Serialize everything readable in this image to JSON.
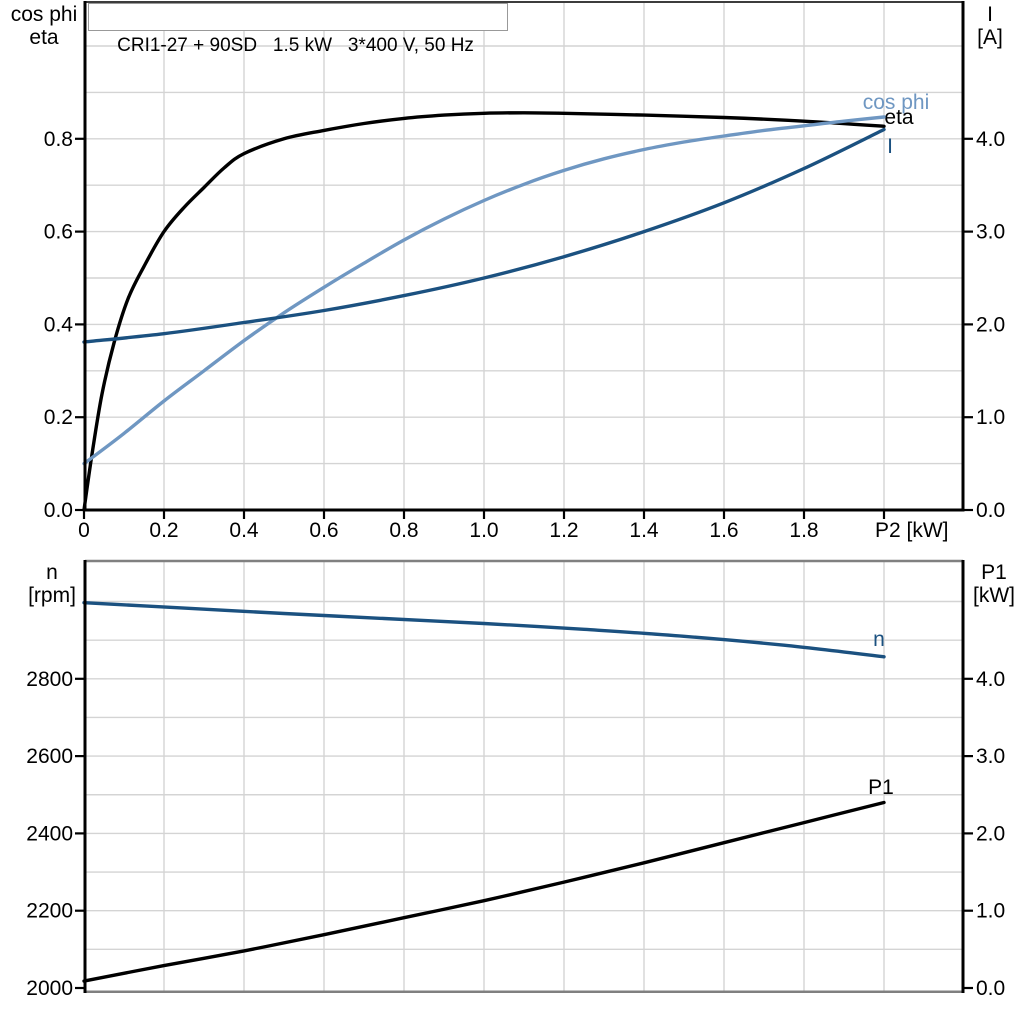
{
  "colors": {
    "background": "#ffffff",
    "grid": "#d4d4d4",
    "axis": "#000000",
    "frame_gray": "#808080",
    "top_border": "#3c3c3c",
    "title_border": "#999999",
    "eta": "#000000",
    "cos_phi": "#6f97c2",
    "current": "#1b5180",
    "speed": "#1b5180",
    "p1": "#000000"
  },
  "chart_data": [
    {
      "type": "line",
      "title": "CRI1-27 + 90SD   1.5 kW   3*400 V, 50 Hz",
      "xlabel": "P2 [kW]",
      "xlim": [
        0,
        2.2
      ],
      "grid": "on",
      "legend_position": "end-of-curve",
      "left_axis": {
        "label_line1": "cos phi",
        "label_line2": "eta",
        "ylim": [
          0,
          1.09
        ],
        "ticks": [
          {
            "v": 0.0,
            "label": "0.0"
          },
          {
            "v": 0.2,
            "label": "0.2"
          },
          {
            "v": 0.4,
            "label": "0.4"
          },
          {
            "v": 0.6,
            "label": "0.6"
          },
          {
            "v": 0.8,
            "label": "0.8"
          }
        ]
      },
      "right_axis": {
        "label_line1": "I",
        "label_line2": "[A]",
        "ylim": [
          0,
          5.47
        ],
        "ticks": [
          {
            "v": 0.0,
            "label": "0.0"
          },
          {
            "v": 1.0,
            "label": "1.0"
          },
          {
            "v": 2.0,
            "label": "2.0"
          },
          {
            "v": 3.0,
            "label": "3.0"
          },
          {
            "v": 4.0,
            "label": "4.0"
          }
        ]
      },
      "x_axis": {
        "ticks": [
          {
            "v": 0.0,
            "label": "0"
          },
          {
            "v": 0.2,
            "label": "0.2"
          },
          {
            "v": 0.4,
            "label": "0.4"
          },
          {
            "v": 0.6,
            "label": "0.6"
          },
          {
            "v": 0.8,
            "label": "0.8"
          },
          {
            "v": 1.0,
            "label": "1.0"
          },
          {
            "v": 1.2,
            "label": "1.2"
          },
          {
            "v": 1.4,
            "label": "1.4"
          },
          {
            "v": 1.6,
            "label": "1.6"
          },
          {
            "v": 1.8,
            "label": "1.8"
          },
          {
            "v": 2.0,
            "label": "P2 [kW]",
            "align": "start"
          }
        ]
      },
      "grid_x": [
        0.2,
        0.4,
        0.6,
        0.8,
        1.0,
        1.2,
        1.4,
        1.6,
        1.8,
        2.0
      ],
      "grid_left": [
        0.1,
        0.2,
        0.3,
        0.4,
        0.5,
        0.6,
        0.7,
        0.8,
        0.9,
        1.0
      ],
      "series": [
        {
          "name": "eta",
          "label": "eta",
          "axis": "left",
          "color_key": "eta",
          "x": [
            0,
            0.02,
            0.045,
            0.075,
            0.11,
            0.15,
            0.2,
            0.25,
            0.3,
            0.35,
            0.4,
            0.5,
            0.6,
            0.7,
            0.8,
            0.9,
            1.0,
            1.1,
            1.2,
            1.4,
            1.6,
            1.8,
            2.0
          ],
          "y": [
            0,
            0.12,
            0.25,
            0.36,
            0.455,
            0.525,
            0.6,
            0.652,
            0.695,
            0.737,
            0.768,
            0.8,
            0.818,
            0.833,
            0.844,
            0.851,
            0.855,
            0.856,
            0.855,
            0.851,
            0.846,
            0.838,
            0.827
          ]
        },
        {
          "name": "cos-phi",
          "label": "cos phi",
          "axis": "left",
          "color_key": "cos_phi",
          "x": [
            0,
            0.1,
            0.2,
            0.3,
            0.4,
            0.5,
            0.6,
            0.7,
            0.8,
            0.9,
            1.0,
            1.1,
            1.2,
            1.3,
            1.4,
            1.5,
            1.6,
            1.7,
            1.8,
            1.9,
            2.0
          ],
          "y": [
            0.1,
            0.165,
            0.235,
            0.3,
            0.365,
            0.425,
            0.48,
            0.532,
            0.582,
            0.627,
            0.667,
            0.702,
            0.732,
            0.757,
            0.777,
            0.793,
            0.806,
            0.818,
            0.828,
            0.838,
            0.847
          ]
        },
        {
          "name": "current",
          "label": "I",
          "axis": "right",
          "color_key": "current",
          "x": [
            0,
            0.2,
            0.4,
            0.6,
            0.8,
            1.0,
            1.2,
            1.4,
            1.6,
            1.8,
            2.0
          ],
          "y": [
            1.81,
            1.9,
            2.02,
            2.15,
            2.31,
            2.5,
            2.73,
            3.0,
            3.31,
            3.68,
            4.1
          ]
        }
      ]
    },
    {
      "type": "line",
      "title": "",
      "xlabel": "",
      "xlim": [
        0,
        2.2
      ],
      "grid": "on",
      "legend_position": "end-of-curve",
      "left_axis": {
        "label_line1": "n",
        "label_line2": "[rpm]",
        "ylim": [
          1990,
          3105
        ],
        "ticks": [
          {
            "v": 2000,
            "label": "2000"
          },
          {
            "v": 2200,
            "label": "2200"
          },
          {
            "v": 2400,
            "label": "2400"
          },
          {
            "v": 2600,
            "label": "2600"
          },
          {
            "v": 2800,
            "label": "2800"
          }
        ]
      },
      "right_axis": {
        "label_line1": "P1",
        "label_line2": "[kW]",
        "ylim": [
          0,
          5.54
        ],
        "ticks": [
          {
            "v": 0.0,
            "label": "0.0"
          },
          {
            "v": 1.0,
            "label": "1.0"
          },
          {
            "v": 2.0,
            "label": "2.0"
          },
          {
            "v": 3.0,
            "label": "3.0"
          },
          {
            "v": 4.0,
            "label": "4.0"
          }
        ]
      },
      "x_axis": {
        "ticks": []
      },
      "grid_x": [
        0.2,
        0.4,
        0.6,
        0.8,
        1.0,
        1.2,
        1.4,
        1.6,
        1.8,
        2.0
      ],
      "grid_left": [
        2100,
        2200,
        2300,
        2400,
        2500,
        2600,
        2700,
        2800,
        2900,
        3000
      ],
      "series": [
        {
          "name": "speed",
          "label": "n",
          "axis": "left",
          "color_key": "speed",
          "x": [
            0,
            0.25,
            0.5,
            0.75,
            1.0,
            1.25,
            1.5,
            1.75,
            2.0
          ],
          "y": [
            2997,
            2983,
            2969,
            2956,
            2943,
            2928,
            2910,
            2887,
            2857
          ]
        },
        {
          "name": "p1",
          "label": "P1",
          "axis": "right",
          "color_key": "p1",
          "x": [
            0,
            0.2,
            0.4,
            0.6,
            0.8,
            1.0,
            1.2,
            1.4,
            1.6,
            1.8,
            2.0
          ],
          "y": [
            0.09,
            0.29,
            0.48,
            0.69,
            0.91,
            1.13,
            1.37,
            1.62,
            1.88,
            2.14,
            2.4
          ]
        }
      ]
    }
  ]
}
